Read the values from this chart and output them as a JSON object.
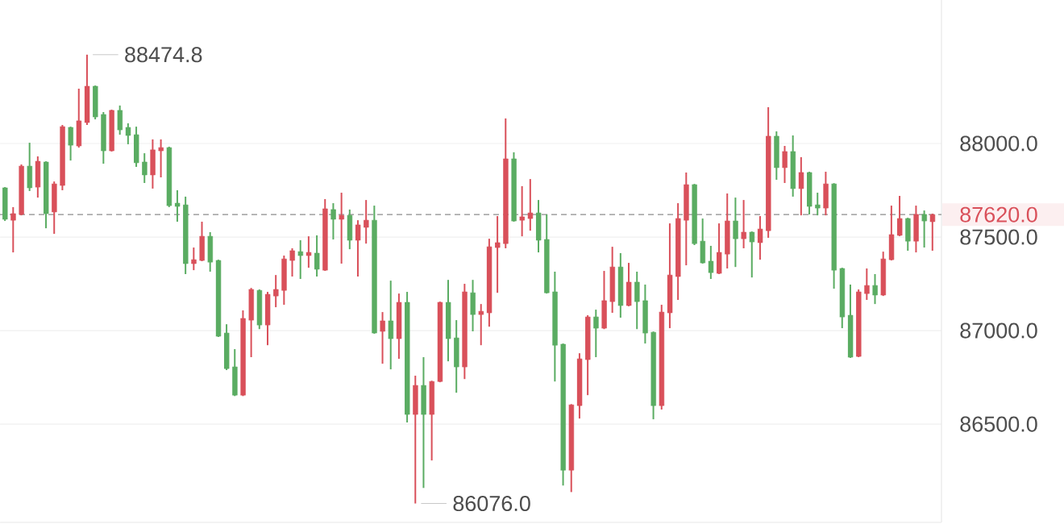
{
  "chart_data": {
    "type": "candlestick",
    "categories": [
      null,
      null,
      null,
      null,
      null,
      null,
      null,
      null,
      null,
      null,
      null,
      null,
      null,
      null,
      null,
      null,
      null,
      null,
      null,
      null,
      null,
      null,
      null,
      null,
      null,
      null,
      null,
      null,
      null,
      null,
      null,
      null,
      null,
      null,
      null,
      null,
      null,
      null,
      null,
      null,
      null,
      null,
      null,
      null,
      null,
      null,
      null,
      null,
      null,
      null,
      null,
      null,
      null,
      null,
      null,
      null,
      null,
      null,
      null,
      null,
      null,
      null,
      null,
      null,
      null,
      null,
      null,
      null,
      null,
      null,
      null,
      null,
      null,
      null,
      null,
      null,
      null,
      null,
      null,
      null,
      null,
      null,
      null,
      null,
      null,
      null,
      null,
      null,
      null,
      null,
      null,
      null,
      null,
      null,
      null,
      null,
      null,
      null,
      null,
      null,
      null,
      null,
      null,
      null,
      null,
      null,
      null,
      null,
      null,
      null,
      null,
      null,
      null,
      null
    ],
    "ohlc": [
      [
        87763,
        87767,
        87586,
        87595
      ],
      [
        87590,
        87660,
        87418,
        87625
      ],
      [
        87621,
        87888,
        87616,
        87879
      ],
      [
        87879,
        88004,
        87746,
        87763
      ],
      [
        87767,
        87931,
        87711,
        87905
      ],
      [
        87901,
        87905,
        87547,
        87625
      ],
      [
        87634,
        87797,
        87517,
        87784
      ],
      [
        87776,
        88099,
        87750,
        88090
      ],
      [
        88086,
        88090,
        87909,
        87991
      ],
      [
        87987,
        88293,
        87978,
        88121
      ],
      [
        88112,
        88474.8,
        88099,
        88306
      ],
      [
        88306,
        88310,
        88129,
        88142
      ],
      [
        88155,
        88168,
        87892,
        87961
      ],
      [
        87961,
        88181,
        87957,
        88177
      ],
      [
        88177,
        88203,
        88047,
        88073
      ],
      [
        88086,
        88108,
        87996,
        88043
      ],
      [
        88047,
        88090,
        87875,
        87897
      ],
      [
        87901,
        87948,
        87789,
        87832
      ],
      [
        87832,
        88022,
        87759,
        87966
      ],
      [
        87961,
        88022,
        87819,
        87978
      ],
      [
        87978,
        87983,
        87660,
        87668
      ],
      [
        87681,
        87750,
        87582,
        87664
      ],
      [
        87672,
        87716,
        87302,
        87358
      ],
      [
        87358,
        87444,
        87323,
        87379
      ],
      [
        87375,
        87582,
        87371,
        87504
      ],
      [
        87504,
        87526,
        87315,
        87366
      ],
      [
        87375,
        87379,
        86966,
        86970
      ],
      [
        86987,
        87034,
        86789,
        86797
      ],
      [
        86806,
        86901,
        86650,
        86655
      ],
      [
        86655,
        87108,
        86650,
        87065
      ],
      [
        87056,
        87228,
        86858,
        87220
      ],
      [
        87215,
        87220,
        87008,
        87030
      ],
      [
        87030,
        87207,
        86922,
        87194
      ],
      [
        87185,
        87297,
        87125,
        87220
      ],
      [
        87215,
        87401,
        87138,
        87383
      ],
      [
        87375,
        87440,
        87289,
        87427
      ],
      [
        87422,
        87483,
        87276,
        87401
      ],
      [
        87401,
        87504,
        87336,
        87418
      ],
      [
        87414,
        87509,
        87289,
        87328
      ],
      [
        87323,
        87703,
        87319,
        87651
      ],
      [
        87647,
        87681,
        87487,
        87595
      ],
      [
        87595,
        87737,
        87358,
        87616
      ],
      [
        87616,
        87647,
        87435,
        87483
      ],
      [
        87483,
        87590,
        87289,
        87565
      ],
      [
        87552,
        87698,
        87465,
        87590
      ],
      [
        87590,
        87668,
        86983,
        86987
      ],
      [
        86996,
        87099,
        86823,
        87052
      ],
      [
        87052,
        87267,
        86793,
        86957
      ],
      [
        86957,
        87198,
        86849,
        87151
      ],
      [
        87151,
        87207,
        86509,
        86552
      ],
      [
        86552,
        86759,
        86076,
        86707
      ],
      [
        86707,
        86858,
        86159,
        86552
      ],
      [
        86552,
        86732,
        86306,
        86728
      ],
      [
        86728,
        87155,
        86724,
        87151
      ],
      [
        87151,
        87271,
        86836,
        86957
      ],
      [
        86961,
        87056,
        86668,
        86806
      ],
      [
        86806,
        87250,
        86741,
        87207
      ],
      [
        87202,
        87271,
        86996,
        87086
      ],
      [
        87086,
        87142,
        86922,
        87103
      ],
      [
        87095,
        87491,
        87021,
        87448
      ],
      [
        87444,
        87612,
        87202,
        87470
      ],
      [
        87465,
        88134,
        87440,
        87918
      ],
      [
        87918,
        87953,
        87582,
        87586
      ],
      [
        87590,
        87772,
        87504,
        87608
      ],
      [
        87599,
        87810,
        87534,
        87629
      ],
      [
        87629,
        87698,
        87418,
        87483
      ],
      [
        87487,
        87621,
        87198,
        87202
      ],
      [
        87207,
        87315,
        86728,
        86922
      ],
      [
        86927,
        86931,
        86172,
        86254
      ],
      [
        86254,
        86607,
        86137,
        86603
      ],
      [
        86599,
        86879,
        86530,
        86849
      ],
      [
        86845,
        87082,
        86655,
        87073
      ],
      [
        87073,
        87112,
        86858,
        87013
      ],
      [
        87013,
        87319,
        87008,
        87160
      ],
      [
        87155,
        87448,
        87095,
        87340
      ],
      [
        87340,
        87414,
        87069,
        87134
      ],
      [
        87134,
        87362,
        87130,
        87259
      ],
      [
        87259,
        87315,
        87008,
        87155
      ],
      [
        87160,
        87246,
        86931,
        86987
      ],
      [
        86991,
        86995,
        86526,
        86599
      ],
      [
        86599,
        87138,
        86578,
        87099
      ],
      [
        87095,
        87573,
        87013,
        87297
      ],
      [
        87289,
        87681,
        87164,
        87599
      ],
      [
        87590,
        87845,
        87349,
        87780
      ],
      [
        87780,
        87784,
        87457,
        87465
      ],
      [
        87478,
        87599,
        87358,
        87362
      ],
      [
        87371,
        87453,
        87276,
        87310
      ],
      [
        87306,
        87573,
        87302,
        87418
      ],
      [
        87409,
        87733,
        87332,
        87586
      ],
      [
        87586,
        87711,
        87340,
        87491
      ],
      [
        87491,
        87698,
        87440,
        87526
      ],
      [
        87526,
        87530,
        87284,
        87474
      ],
      [
        87470,
        87612,
        87379,
        87543
      ],
      [
        87534,
        88194,
        87496,
        88039
      ],
      [
        88039,
        88065,
        87806,
        87871
      ],
      [
        87871,
        87987,
        87789,
        87957
      ],
      [
        87957,
        88043,
        87716,
        87759
      ],
      [
        87759,
        87927,
        87616,
        87845
      ],
      [
        87845,
        87849,
        87621,
        87664
      ],
      [
        87672,
        87737,
        87616,
        87655
      ],
      [
        87655,
        87849,
        87616,
        87784
      ],
      [
        87784,
        87788,
        87224,
        87323
      ],
      [
        87332,
        87336,
        87013,
        87073
      ],
      [
        87082,
        87246,
        86854,
        86858
      ],
      [
        86862,
        87220,
        86858,
        87207
      ],
      [
        87198,
        87332,
        87164,
        87241
      ],
      [
        87241,
        87302,
        87142,
        87190
      ],
      [
        87190,
        87422,
        87185,
        87383
      ],
      [
        87379,
        87668,
        87375,
        87513
      ],
      [
        87509,
        87720,
        87505,
        87599
      ],
      [
        87599,
        87603,
        87427,
        87478
      ],
      [
        87478,
        87668,
        87418,
        87621
      ],
      [
        87621,
        87642,
        87444,
        87586
      ],
      [
        87582,
        87625,
        87427,
        87620
      ]
    ],
    "colors": [
      "#5aac62",
      "#d9505a",
      "#d9505a",
      "#5aac62",
      "#d9505a",
      "#5aac62",
      "#d9505a",
      "#d9505a",
      "#5aac62",
      "#d9505a",
      "#d9505a",
      "#5aac62",
      "#5aac62",
      "#d9505a",
      "#5aac62",
      "#5aac62",
      "#5aac62",
      "#5aac62",
      "#d9505a",
      "#d9505a",
      "#5aac62",
      "#5aac62",
      "#5aac62",
      "#d9505a",
      "#d9505a",
      "#5aac62",
      "#5aac62",
      "#5aac62",
      "#5aac62",
      "#d9505a",
      "#d9505a",
      "#5aac62",
      "#d9505a",
      "#d9505a",
      "#d9505a",
      "#d9505a",
      "#5aac62",
      "#d9505a",
      "#5aac62",
      "#d9505a",
      "#5aac62",
      "#d9505a",
      "#5aac62",
      "#d9505a",
      "#d9505a",
      "#5aac62",
      "#d9505a",
      "#5aac62",
      "#d9505a",
      "#5aac62",
      "#d9505a",
      "#5aac62",
      "#d9505a",
      "#d9505a",
      "#5aac62",
      "#5aac62",
      "#d9505a",
      "#5aac62",
      "#d9505a",
      "#d9505a",
      "#d9505a",
      "#d9505a",
      "#5aac62",
      "#d9505a",
      "#d9505a",
      "#5aac62",
      "#5aac62",
      "#5aac62",
      "#5aac62",
      "#d9505a",
      "#d9505a",
      "#d9505a",
      "#5aac62",
      "#d9505a",
      "#d9505a",
      "#5aac62",
      "#d9505a",
      "#5aac62",
      "#5aac62",
      "#5aac62",
      "#d9505a",
      "#d9505a",
      "#d9505a",
      "#d9505a",
      "#5aac62",
      "#5aac62",
      "#5aac62",
      "#d9505a",
      "#d9505a",
      "#5aac62",
      "#d9505a",
      "#5aac62",
      "#d9505a",
      "#d9505a",
      "#5aac62",
      "#d9505a",
      "#5aac62",
      "#d9505a",
      "#5aac62",
      "#5aac62",
      "#d9505a",
      "#5aac62",
      "#5aac62",
      "#5aac62",
      "#d9505a",
      "#d9505a",
      "#5aac62",
      "#d9505a",
      "#d9505a",
      "#d9505a",
      "#5aac62",
      "#d9505a",
      "#5aac62",
      "#d9505a"
    ],
    "ylim": [
      85975,
      88767
    ],
    "yticks": [
      {
        "value": 86500,
        "label": "86500.0"
      },
      {
        "value": 87000,
        "label": "87000.0"
      },
      {
        "value": 87500,
        "label": "87500.0"
      },
      {
        "value": 88000,
        "label": "88000.0"
      }
    ],
    "grid": "y",
    "tick_labels": "y",
    "ref_lines": [
      {
        "axis": "y",
        "value": 87620,
        "label": "87620.0",
        "color": "#8c8c8c",
        "line_style": "dashed"
      }
    ],
    "annotations": [
      "88474.8",
      "86076.0"
    ]
  }
}
